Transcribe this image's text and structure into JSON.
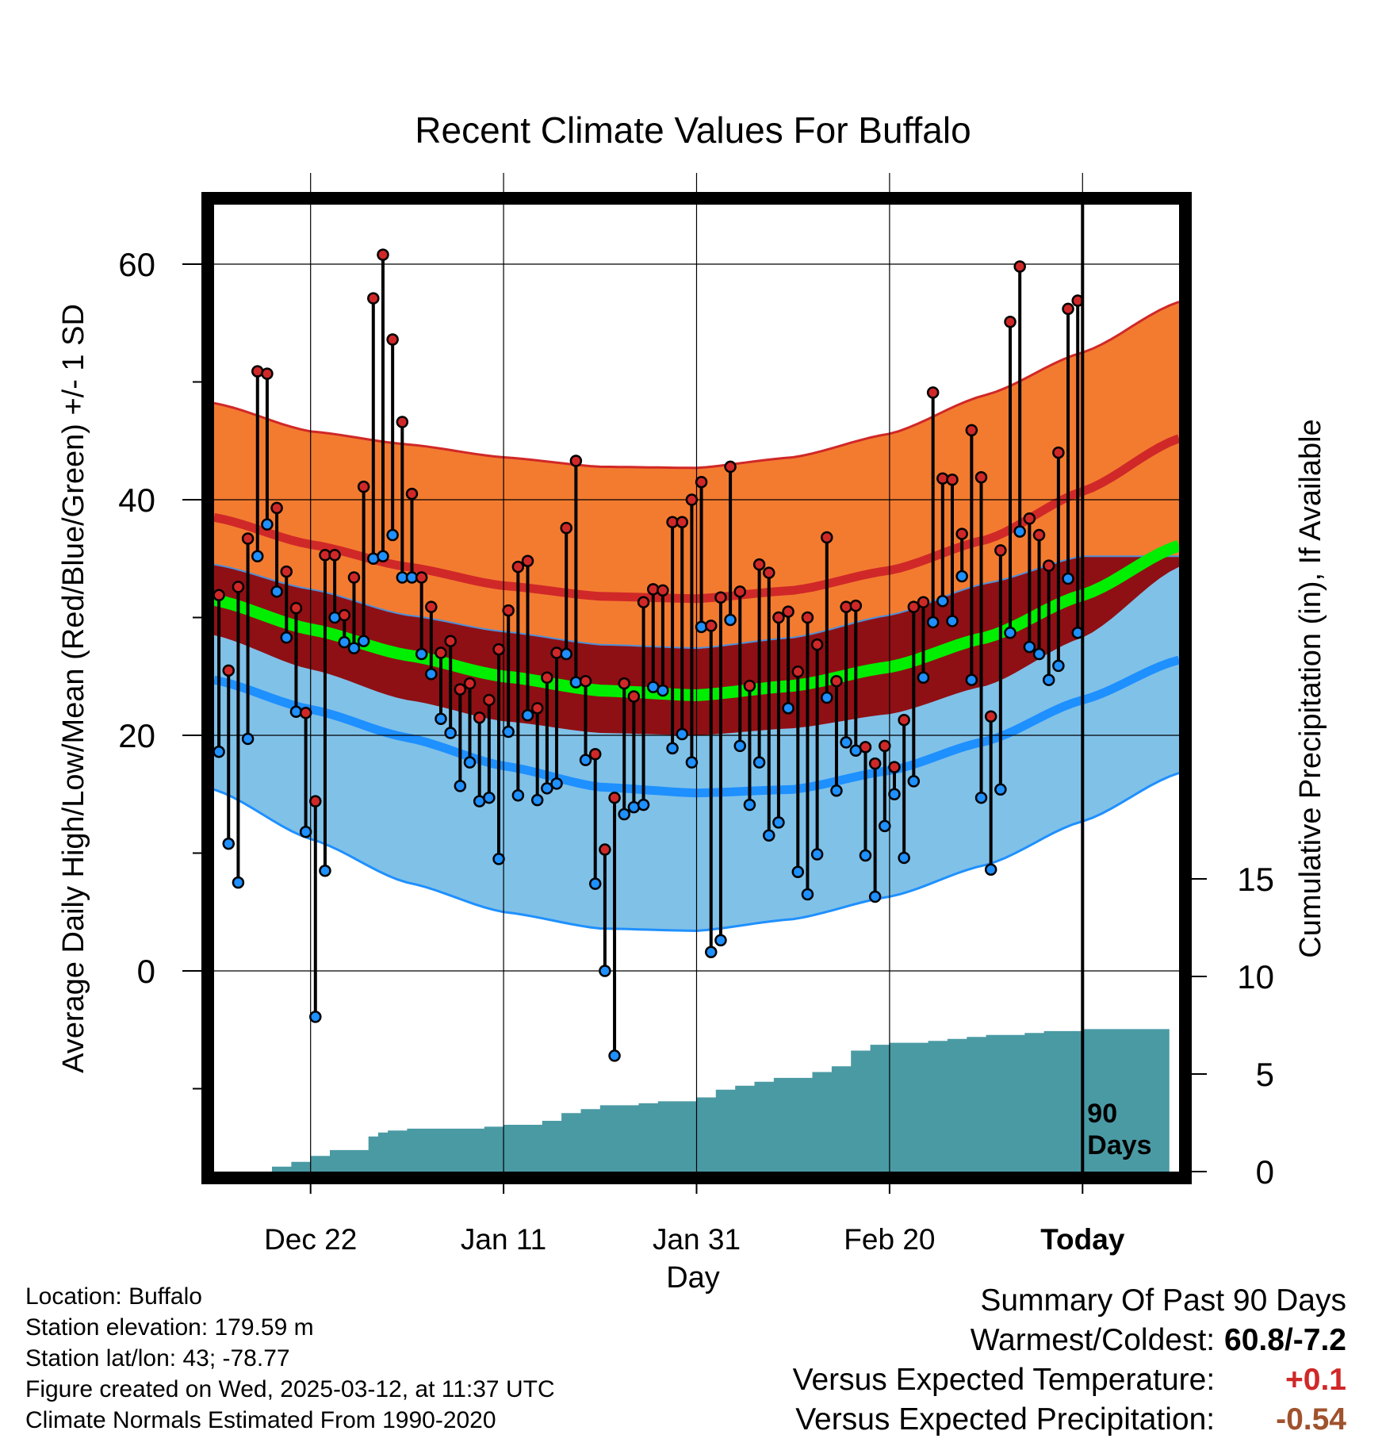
{
  "chart_data": {
    "type": "line",
    "title": "Recent Climate Values For Buffalo",
    "xlabel": "Day",
    "ylabel": "Average Daily High/Low/Mean (Red/Blue/Green) +/- 1 SD",
    "y2label": "Cumulative Precipitation (in), If Available",
    "x_tick_labels": [
      "Dec 22",
      "Jan 11",
      "Jan 31",
      "Feb 20",
      "Today"
    ],
    "y_ticks": [
      0,
      20,
      40,
      60
    ],
    "y2_ticks": [
      0,
      5,
      10,
      15
    ],
    "ylim": [
      -16.5,
      67
    ],
    "y2lim": [
      0,
      47
    ],
    "window_label": "90 Days",
    "grid": true,
    "colors": {
      "high_band": "#F37B30",
      "high_line": "#D02828",
      "mean_band": "#8E1014",
      "mean_line": "#00EE00",
      "low_band": "#80C1E8",
      "low_line": "#1E90FF",
      "precip": "#4A9AA4",
      "high_point": "#D02828",
      "low_point": "#1E90FF"
    },
    "normals_days": [
      0,
      10,
      20,
      30,
      40,
      50,
      60,
      70,
      80,
      90,
      100
    ],
    "normal_high": [
      38.5,
      36.2,
      34.3,
      32.7,
      31.8,
      31.6,
      32.3,
      34.0,
      36.6,
      40.7,
      45.2
    ],
    "normal_high_plus_sd": [
      48.2,
      45.8,
      44.7,
      43.6,
      42.8,
      42.7,
      43.6,
      45.6,
      48.9,
      52.5,
      56.8
    ],
    "normal_mean": [
      31.5,
      29.0,
      26.8,
      25.0,
      23.8,
      23.4,
      24.2,
      25.8,
      28.3,
      31.9,
      36.1
    ],
    "normal_mean_upper": [
      34.5,
      32.4,
      30.2,
      28.8,
      27.7,
      27.4,
      28.3,
      30.2,
      32.9,
      35.2,
      35.2
    ],
    "normal_mean_lower": [
      28.5,
      25.6,
      23.0,
      21.2,
      20.2,
      20.0,
      20.6,
      21.8,
      24.2,
      28.3,
      34.3
    ],
    "normal_low": [
      24.7,
      22.2,
      19.8,
      17.4,
      15.6,
      15.1,
      15.4,
      17.0,
      19.5,
      23.0,
      26.4
    ],
    "normal_low_minus_sd": [
      15.4,
      11.2,
      7.5,
      5.0,
      3.6,
      3.4,
      4.4,
      6.3,
      9.0,
      12.7,
      16.8
    ],
    "daily_high": [
      31.9,
      25.5,
      32.6,
      36.7,
      50.9,
      50.7,
      39.3,
      33.9,
      30.8,
      21.9,
      14.4,
      35.3,
      35.3,
      30.2,
      33.4,
      41.1,
      57.1,
      60.8,
      53.6,
      46.6,
      40.5,
      33.4,
      30.9,
      27.0,
      28.0,
      23.9,
      24.4,
      21.5,
      23.0,
      27.3,
      30.6,
      34.3,
      34.8,
      22.3,
      24.9,
      27.0,
      37.6,
      43.3,
      24.6,
      18.4,
      10.3,
      14.7,
      24.4,
      23.3,
      31.3,
      32.4,
      32.3,
      38.1,
      38.1,
      40.0,
      41.5,
      29.3,
      31.7,
      42.8,
      32.2,
      24.2,
      34.5,
      33.8,
      30.0,
      30.5,
      25.4,
      30.0,
      27.7,
      36.8,
      24.6,
      30.9,
      31.0,
      19.0,
      17.6,
      19.1,
      17.3,
      21.3,
      30.9,
      31.3,
      49.1,
      41.8,
      41.7,
      37.1,
      45.9,
      41.9,
      21.6,
      35.7,
      55.1,
      59.8,
      38.4,
      37.0,
      34.4,
      44.0,
      56.2,
      56.9
    ],
    "daily_low": [
      18.6,
      10.8,
      7.5,
      19.7,
      35.2,
      37.9,
      32.2,
      28.3,
      22.0,
      11.8,
      -3.9,
      8.5,
      30.0,
      27.9,
      27.4,
      28.0,
      35.0,
      35.2,
      37.0,
      33.4,
      33.4,
      26.9,
      25.2,
      21.4,
      20.2,
      15.7,
      17.7,
      14.4,
      14.7,
      9.5,
      20.3,
      14.9,
      21.7,
      14.5,
      15.5,
      15.9,
      26.9,
      24.5,
      17.9,
      7.4,
      0.0,
      -7.2,
      13.3,
      13.9,
      14.1,
      24.1,
      23.8,
      18.9,
      20.1,
      17.7,
      29.2,
      1.6,
      2.6,
      29.8,
      19.1,
      14.1,
      17.7,
      11.5,
      12.6,
      22.3,
      8.4,
      6.5,
      9.9,
      23.2,
      15.3,
      19.4,
      18.7,
      9.8,
      6.3,
      12.3,
      15.0,
      9.6,
      16.1,
      24.9,
      29.6,
      31.4,
      29.7,
      33.5,
      24.7,
      14.7,
      8.6,
      15.4,
      28.7,
      37.3,
      27.5,
      26.9,
      24.7,
      25.9,
      33.3,
      28.7
    ],
    "precip_days": [
      0,
      5,
      6,
      8,
      10,
      12,
      16,
      17,
      18,
      20,
      23,
      28,
      30,
      34,
      36,
      38,
      40,
      44,
      46,
      50,
      52,
      54,
      56,
      58,
      62,
      64,
      66,
      68,
      70,
      74,
      76,
      78,
      80,
      82,
      84,
      86,
      90,
      99
    ],
    "precip_values": [
      0.0,
      0.0,
      0.25,
      0.5,
      0.8,
      1.1,
      1.8,
      2.0,
      2.1,
      2.2,
      2.2,
      2.3,
      2.4,
      2.6,
      3.0,
      3.2,
      3.4,
      3.5,
      3.6,
      3.8,
      4.2,
      4.4,
      4.6,
      4.8,
      5.1,
      5.4,
      6.2,
      6.5,
      6.6,
      6.7,
      6.8,
      6.9,
      7.0,
      7.0,
      7.1,
      7.2,
      7.3,
      7.3
    ]
  },
  "info": {
    "location": "Location: Buffalo",
    "elevation": "Station elevation: 179.59 m",
    "latlon": "Station lat/lon: 43; -78.77",
    "created": "Figure created on Wed, 2025-03-12, at 11:37 UTC",
    "normals": "Climate Normals Estimated From 1990-2020"
  },
  "summary": {
    "heading": "Summary Of Past 90 Days",
    "warm_cold_label": "Warmest/Coldest:",
    "warm_cold_value": "60.8/-7.2",
    "temp_label": "Versus Expected Temperature:",
    "temp_value": "+0.1",
    "temp_color": "#D02828",
    "precip_label": "Versus Expected Precipitation:",
    "precip_value": "-0.54",
    "precip_color": "#A0522D"
  }
}
